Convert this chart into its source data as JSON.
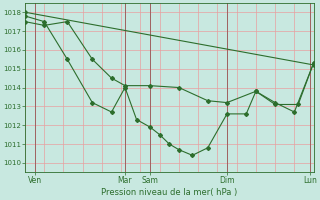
{
  "bg_color": "#c8e8e0",
  "grid_color": "#e8a0a0",
  "line_color": "#2d6e2d",
  "marker_color": "#2d6e2d",
  "xlabel": "Pression niveau de la mer( hPa )",
  "ylim": [
    1009.5,
    1018.5
  ],
  "yticks": [
    1010,
    1011,
    1012,
    1013,
    1014,
    1015,
    1016,
    1017,
    1018
  ],
  "xlim": [
    0,
    150
  ],
  "xtick_positions": [
    5,
    52,
    65,
    105,
    148
  ],
  "xtick_labels": [
    "Ven",
    "Mar",
    "Sam",
    "Dim",
    "Lun"
  ],
  "vline_positions": [
    5,
    52,
    65,
    105,
    148
  ],
  "line1_x": [
    0,
    150
  ],
  "line1_y": [
    1018.0,
    1015.2
  ],
  "line2_x": [
    0,
    10,
    22,
    35,
    45,
    52,
    65,
    80,
    95,
    105,
    120,
    130,
    142,
    150
  ],
  "line2_y": [
    1017.5,
    1017.3,
    1017.5,
    1015.5,
    1014.5,
    1014.1,
    1014.1,
    1014.0,
    1013.3,
    1013.2,
    1013.8,
    1013.1,
    1013.1,
    1015.3
  ],
  "line3_x": [
    0,
    10,
    22,
    35,
    45,
    52,
    58,
    65,
    70,
    75,
    80,
    87,
    95,
    105,
    115,
    120,
    130,
    140,
    150
  ],
  "line3_y": [
    1017.8,
    1017.5,
    1015.5,
    1013.2,
    1012.7,
    1014.0,
    1012.3,
    1011.9,
    1011.5,
    1011.0,
    1010.7,
    1010.4,
    1010.8,
    1012.6,
    1012.6,
    1013.8,
    1013.2,
    1012.7,
    1015.3
  ]
}
